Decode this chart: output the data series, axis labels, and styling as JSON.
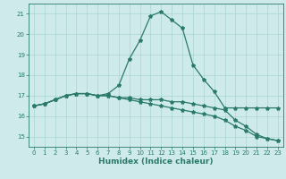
{
  "title": "",
  "xlabel": "Humidex (Indice chaleur)",
  "ylabel": "",
  "bg_color": "#ceeaea",
  "grid_color": "#aad4d4",
  "line_color": "#2a7a6a",
  "xlim": [
    -0.5,
    23.5
  ],
  "ylim": [
    14.5,
    21.5
  ],
  "x_ticks": [
    0,
    1,
    2,
    3,
    4,
    5,
    6,
    7,
    8,
    9,
    10,
    11,
    12,
    13,
    14,
    15,
    16,
    17,
    18,
    19,
    20,
    21,
    22,
    23
  ],
  "y_ticks": [
    15,
    16,
    17,
    18,
    19,
    20,
    21
  ],
  "line1_x": [
    0,
    1,
    2,
    3,
    4,
    5,
    6,
    7,
    8,
    9,
    10,
    11,
    12,
    13,
    14,
    15,
    16,
    17,
    18,
    19,
    20,
    21,
    22,
    23
  ],
  "line1_y": [
    16.5,
    16.6,
    16.8,
    17.0,
    17.1,
    17.1,
    17.0,
    17.1,
    17.5,
    18.8,
    19.7,
    20.9,
    21.1,
    20.7,
    20.3,
    18.5,
    17.8,
    17.2,
    16.4,
    16.4,
    16.4,
    16.4,
    16.4,
    16.4
  ],
  "line2_x": [
    0,
    1,
    2,
    3,
    4,
    5,
    6,
    7,
    8,
    9,
    10,
    11,
    12,
    13,
    14,
    15,
    16,
    17,
    18,
    19,
    20,
    21,
    22,
    23
  ],
  "line2_y": [
    16.5,
    16.6,
    16.8,
    17.0,
    17.1,
    17.1,
    17.0,
    17.0,
    16.9,
    16.9,
    16.8,
    16.8,
    16.8,
    16.7,
    16.7,
    16.6,
    16.5,
    16.4,
    16.3,
    15.8,
    15.5,
    15.1,
    14.9,
    14.8
  ],
  "line3_x": [
    0,
    1,
    2,
    3,
    4,
    5,
    6,
    7,
    8,
    9,
    10,
    11,
    12,
    13,
    14,
    15,
    16,
    17,
    18,
    19,
    20,
    21,
    22,
    23
  ],
  "line3_y": [
    16.5,
    16.6,
    16.8,
    17.0,
    17.1,
    17.1,
    17.0,
    17.0,
    16.9,
    16.8,
    16.7,
    16.6,
    16.5,
    16.4,
    16.3,
    16.2,
    16.1,
    16.0,
    15.8,
    15.5,
    15.3,
    15.0,
    14.9,
    14.8
  ],
  "marker": "*",
  "marker_size": 3.0,
  "line_width": 0.9,
  "tick_fontsize": 5.0,
  "label_fontsize": 6.5
}
